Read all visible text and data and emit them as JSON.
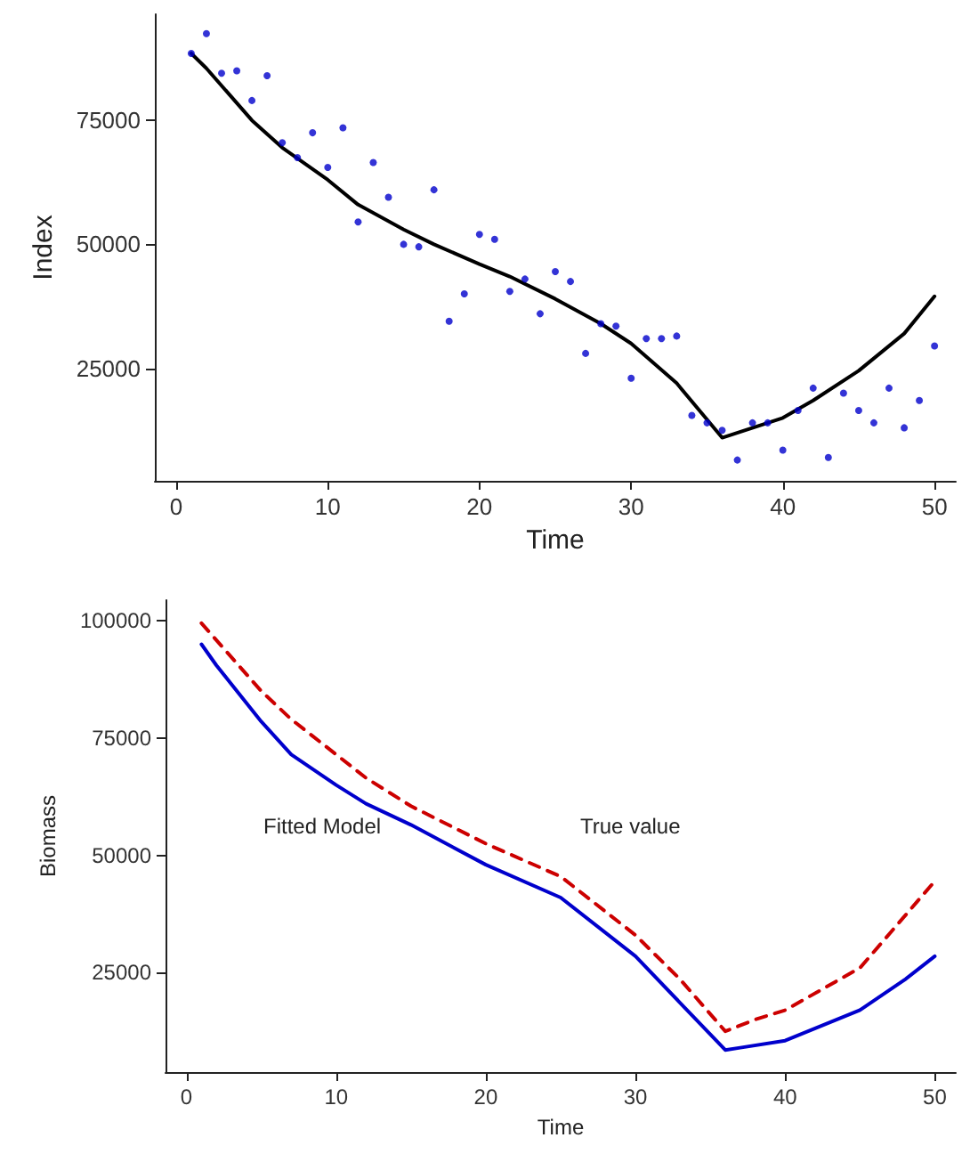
{
  "chart_data": [
    {
      "type": "scatter",
      "xlabel": "Time",
      "ylabel": "Index",
      "xlim": [
        -1.4,
        51.4
      ],
      "ylim": [
        2300,
        96400
      ],
      "xticks": [
        0,
        10,
        20,
        30,
        40,
        50
      ],
      "yticks": [
        25000,
        50000,
        75000
      ],
      "grid": false,
      "marker": "circle",
      "series": [
        {
          "color": "#0000cc",
          "x": [
            1,
            2,
            3,
            4,
            5,
            6,
            7,
            8,
            9,
            10,
            11,
            12,
            13,
            14,
            15,
            16,
            17,
            18,
            19,
            20,
            21,
            22,
            23,
            24,
            25,
            26,
            27,
            28,
            29,
            30,
            31,
            32,
            33,
            34,
            35,
            36,
            37,
            38,
            39,
            40,
            41,
            42,
            43,
            44,
            45,
            46,
            47,
            48,
            49,
            50
          ],
          "values": [
            88500,
            92500,
            84500,
            85000,
            79000,
            84000,
            70500,
            67500,
            72500,
            65500,
            73500,
            54500,
            66500,
            59500,
            50000,
            49500,
            61000,
            34500,
            40000,
            52000,
            51000,
            40500,
            43000,
            36000,
            44500,
            42500,
            28000,
            34000,
            33500,
            23000,
            31000,
            31000,
            31500,
            15500,
            14000,
            12500,
            6500,
            14000,
            14000,
            8500,
            16500,
            21000,
            7000,
            20000,
            16500,
            14000,
            21000,
            13000,
            18500,
            29500
          ]
        },
        {
          "type": "line",
          "color": "#000000",
          "marker": "none",
          "line_style": "solid",
          "x": [
            1,
            2,
            5,
            7,
            10,
            12,
            15,
            17,
            20,
            22,
            25,
            28,
            30,
            33,
            36,
            40,
            42,
            45,
            48,
            50
          ],
          "values": [
            88500,
            85500,
            75000,
            69500,
            63000,
            58000,
            53000,
            50000,
            46000,
            43500,
            39000,
            34000,
            30000,
            22000,
            11000,
            15000,
            18500,
            24500,
            32000,
            39500
          ]
        }
      ]
    },
    {
      "type": "line",
      "xlabel": "Time",
      "ylabel": "Biomass",
      "xlim": [
        -1.4,
        51.4
      ],
      "ylim": [
        3800,
        104400
      ],
      "xticks": [
        0,
        10,
        20,
        30,
        40,
        50
      ],
      "yticks": [
        25000,
        50000,
        75000,
        100000
      ],
      "grid": false,
      "marker": "none",
      "annotations": [
        "Fitted Model",
        "True value"
      ],
      "series": [
        {
          "color": "#0000cc",
          "line_style": "solid",
          "x": [
            1,
            2,
            5,
            7,
            10,
            12,
            15,
            20,
            25,
            30,
            33,
            36,
            37,
            40,
            45,
            48,
            50
          ],
          "values": [
            95000,
            90500,
            78500,
            71500,
            65000,
            61000,
            56500,
            48000,
            41000,
            28500,
            18500,
            8500,
            9000,
            10500,
            17000,
            23500,
            28500
          ]
        },
        {
          "color": "#cc0000",
          "line_style": "dashed",
          "x": [
            1,
            5,
            7,
            10,
            12,
            15,
            20,
            25,
            30,
            33,
            36,
            38,
            40,
            45,
            50
          ],
          "values": [
            99500,
            85000,
            79000,
            71500,
            66500,
            60500,
            52500,
            45500,
            33000,
            23500,
            12500,
            15000,
            17000,
            26000,
            44500
          ]
        }
      ]
    }
  ]
}
